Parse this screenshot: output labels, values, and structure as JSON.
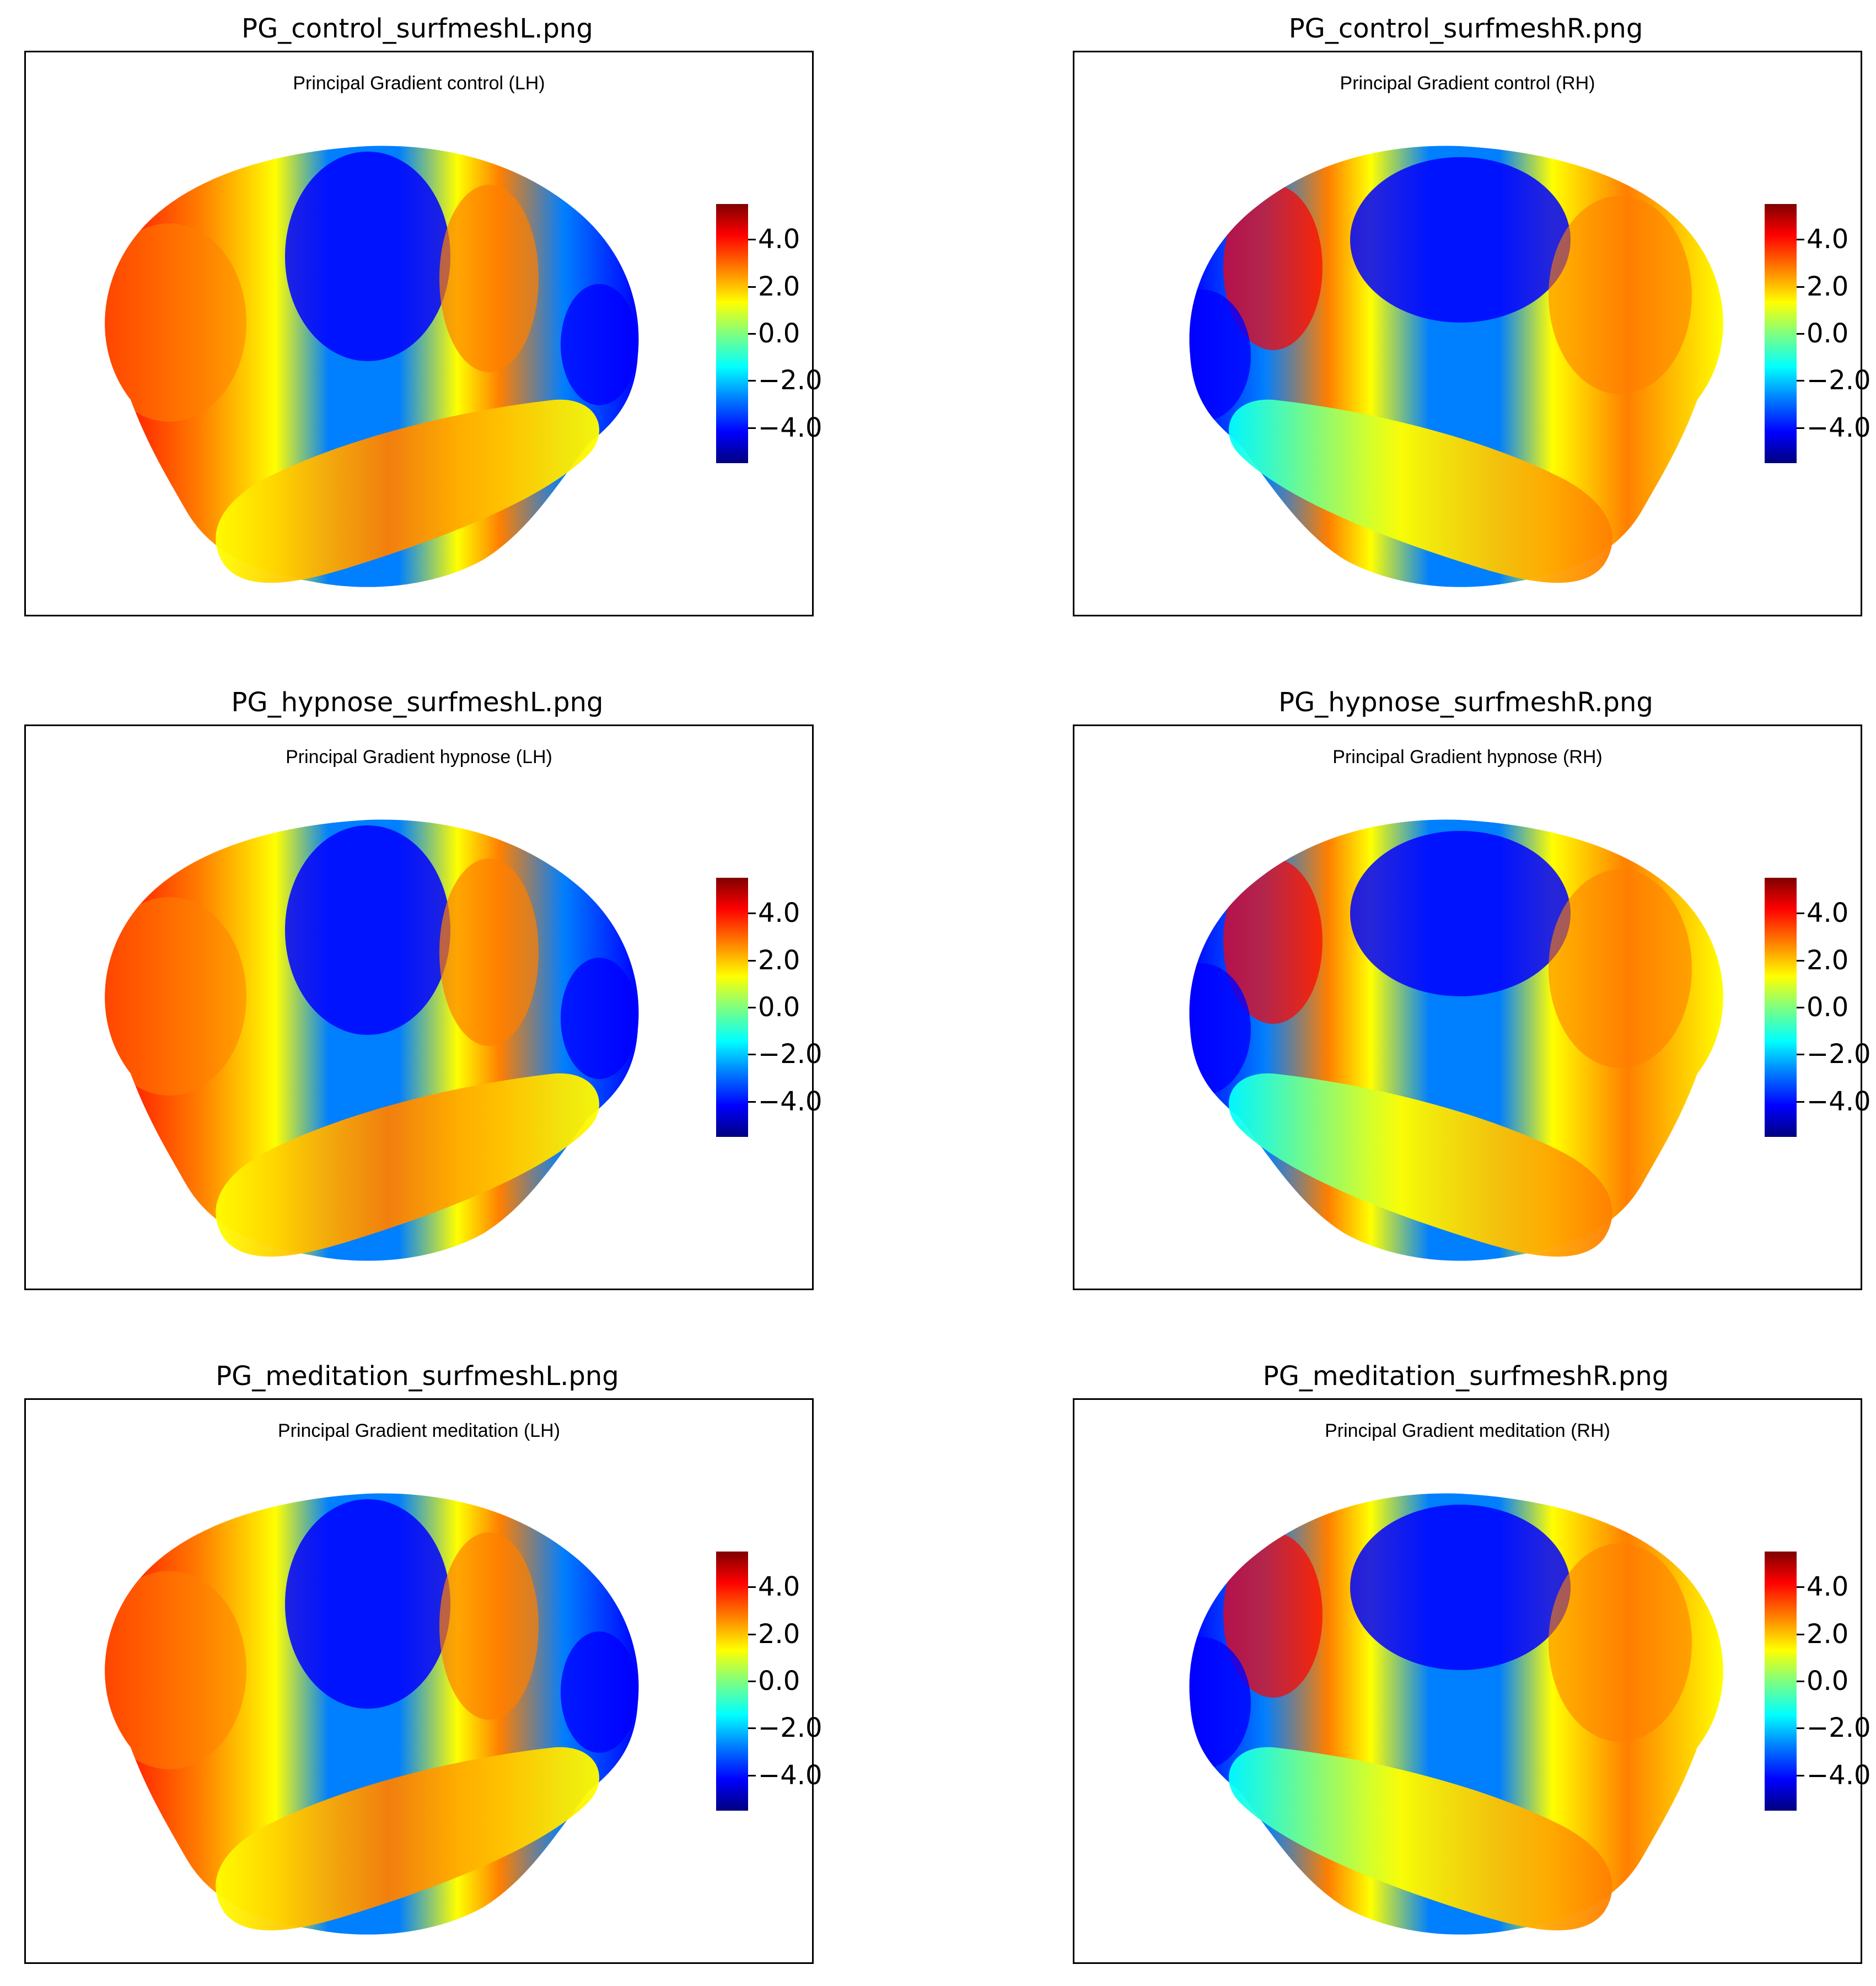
{
  "colormap": [
    "#00007f",
    "#0000ff",
    "#007fff",
    "#00ffff",
    "#7fff7f",
    "#ffff00",
    "#ff7f00",
    "#ff0000",
    "#7f0000"
  ],
  "colorbar": {
    "range": [
      -5.5,
      5.5
    ],
    "ticks": [
      4.0,
      2.0,
      0.0,
      -2.0,
      -4.0
    ],
    "tick_labels": [
      "4.0",
      "2.0",
      "0.0",
      "−2.0",
      "−4.0"
    ]
  },
  "panels": [
    {
      "file_title": "PG_control_surfmeshL.png",
      "plot_title": "Principal Gradient control (LH)",
      "hemisphere": "left"
    },
    {
      "file_title": "PG_control_surfmeshR.png",
      "plot_title": "Principal Gradient control (RH)",
      "hemisphere": "right"
    },
    {
      "file_title": "PG_hypnose_surfmeshL.png",
      "plot_title": "Principal Gradient hypnose (LH)",
      "hemisphere": "left"
    },
    {
      "file_title": "PG_hypnose_surfmeshR.png",
      "plot_title": "Principal Gradient hypnose (RH)",
      "hemisphere": "right"
    },
    {
      "file_title": "PG_meditation_surfmeshL.png",
      "plot_title": "Principal Gradient meditation (LH)",
      "hemisphere": "left"
    },
    {
      "file_title": "PG_meditation_surfmeshR.png",
      "plot_title": "Principal Gradient meditation (RH)",
      "hemisphere": "right"
    }
  ]
}
